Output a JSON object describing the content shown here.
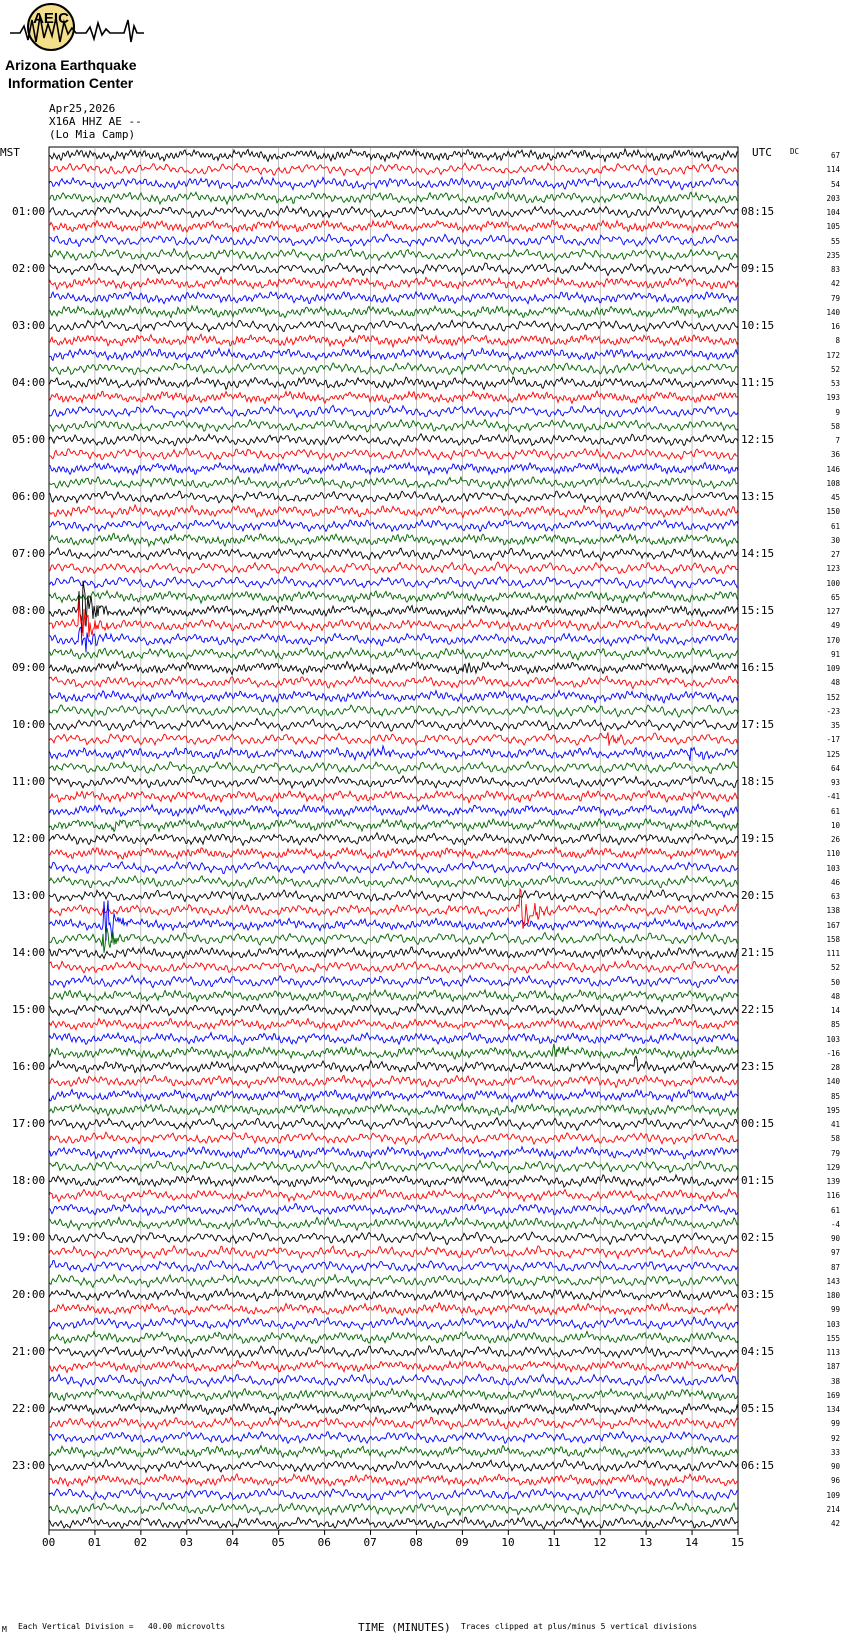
{
  "logo": {
    "org_line1": "Arizona Earthquake",
    "org_line2": "Information Center",
    "emblem_text": "AEIC"
  },
  "header": {
    "date": "Apr25,2026",
    "station": "X16A HHZ AE --",
    "site": "(Lo Mia Camp)"
  },
  "colors": {
    "trace_cycle": [
      "#000000",
      "#ff0000",
      "#0000ff",
      "#006400"
    ],
    "grid": "#999999"
  },
  "chart_data": {
    "type": "line",
    "description_units": "helicorder rows, 15 minutes each, time axis in minutes",
    "left_axis_label": "MST",
    "right_axis_label": "UTC",
    "dc_header": "DC",
    "left_hour_labels": [
      "01:00",
      "02:00",
      "03:00",
      "04:00",
      "05:00",
      "06:00",
      "07:00",
      "08:00",
      "09:00",
      "10:00",
      "11:00",
      "12:00",
      "13:00",
      "14:00",
      "15:00",
      "16:00",
      "17:00",
      "18:00",
      "19:00",
      "20:00",
      "21:00",
      "22:00",
      "23:00"
    ],
    "right_hour_labels": [
      "08:15",
      "09:15",
      "10:15",
      "11:15",
      "12:15",
      "13:15",
      "14:15",
      "15:15",
      "16:15",
      "17:15",
      "18:15",
      "19:15",
      "20:15",
      "21:15",
      "22:15",
      "23:15",
      "00:15",
      "01:15",
      "02:15",
      "03:15",
      "04:15",
      "05:15",
      "06:15"
    ],
    "dc_offsets": [
      "67",
      "114",
      "54",
      "203",
      "104",
      "105",
      "55",
      "235",
      "83",
      "42",
      "79",
      "140",
      "16",
      "8",
      "172",
      "52",
      "53",
      "193",
      "9",
      "58",
      "7",
      "36",
      "146",
      "108",
      "45",
      "150",
      "61",
      "30",
      "27",
      "123",
      "100",
      "65",
      "127",
      "49",
      "170",
      "91",
      "109",
      "48",
      "152",
      "-23",
      "35",
      "-17",
      "125",
      "64",
      "93",
      "-41",
      "61",
      "10",
      "26",
      "110",
      "103",
      "46",
      "63",
      "138",
      "167",
      "158",
      "111",
      "52",
      "50",
      "48",
      "14",
      "85",
      "103",
      "-16",
      "28",
      "140",
      "85",
      "195",
      "41",
      "58",
      "79",
      "129",
      "139",
      "116",
      "61",
      "-4",
      "90",
      "97",
      "87",
      "143",
      "180",
      "99",
      "103",
      "155",
      "113",
      "187",
      "38",
      "169",
      "134",
      "99",
      "92",
      "33",
      "90",
      "96",
      "109",
      "214",
      "42"
    ],
    "x_ticks": [
      "00",
      "01",
      "02",
      "03",
      "04",
      "05",
      "06",
      "07",
      "08",
      "09",
      "10",
      "11",
      "12",
      "13",
      "14",
      "15"
    ],
    "xlim": [
      0,
      15
    ],
    "xlabel": "TIME (MINUTES)",
    "scale_note": "Each Vertical Division =   40.00 microvolts",
    "clip_note": "Traces clipped at plus/minus 5 vertical divisions",
    "events": [
      {
        "row": 32,
        "minute": 0.7,
        "amplitude": 4
      },
      {
        "row": 33,
        "minute": 0.7,
        "amplitude": 3
      },
      {
        "row": 34,
        "minute": 0.7,
        "amplitude": 2
      },
      {
        "row": 36,
        "minute": 9.0,
        "amplitude": 0.8
      },
      {
        "row": 42,
        "minute": 7.2,
        "amplitude": 0.8
      },
      {
        "row": 41,
        "minute": 12.2,
        "amplitude": 0.8
      },
      {
        "row": 42,
        "minute": 14.0,
        "amplitude": 1.0
      },
      {
        "row": 53,
        "minute": 10.3,
        "amplitude": 4
      },
      {
        "row": 54,
        "minute": 1.2,
        "amplitude": 4
      },
      {
        "row": 55,
        "minute": 1.2,
        "amplitude": 2.5
      },
      {
        "row": 63,
        "minute": 11.0,
        "amplitude": 0.8
      },
      {
        "row": 64,
        "minute": 12.8,
        "amplitude": 0.7
      },
      {
        "row": 47,
        "minute": 1.4,
        "amplitude": 0.7
      }
    ]
  },
  "footer": {
    "corner_mark": "M"
  }
}
